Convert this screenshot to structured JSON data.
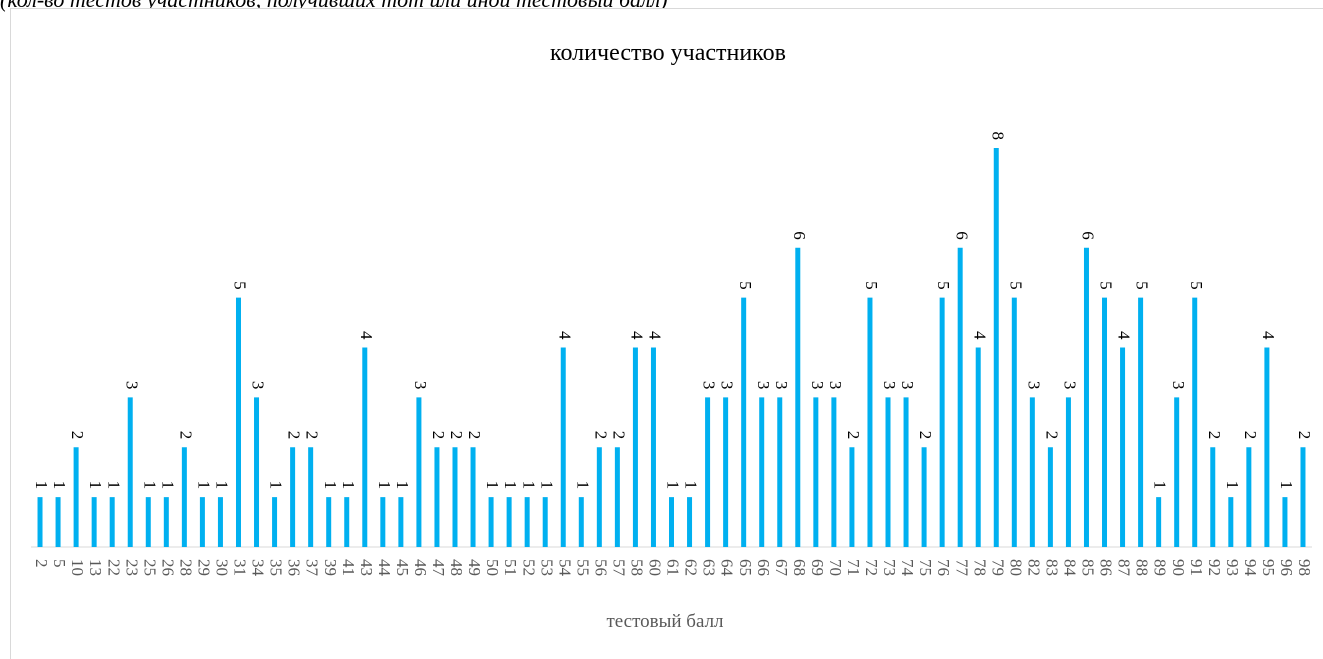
{
  "note": "(кол-во тестов участников, получивших тот или иной тестовый балл)",
  "chart_data": {
    "type": "bar",
    "title": "количество участников",
    "x_label": "тестовый балл",
    "categories": [
      "2",
      "5",
      "10",
      "13",
      "22",
      "23",
      "25",
      "26",
      "28",
      "29",
      "30",
      "31",
      "34",
      "35",
      "36",
      "37",
      "39",
      "41",
      "43",
      "44",
      "45",
      "46",
      "47",
      "48",
      "49",
      "50",
      "51",
      "52",
      "53",
      "54",
      "55",
      "56",
      "57",
      "58",
      "60",
      "61",
      "62",
      "63",
      "64",
      "65",
      "66",
      "67",
      "68",
      "69",
      "70",
      "71",
      "72",
      "73",
      "74",
      "75",
      "76",
      "77",
      "78",
      "79",
      "80",
      "82",
      "83",
      "84",
      "85",
      "86",
      "87",
      "88",
      "89",
      "90",
      "91",
      "92",
      "93",
      "94",
      "95",
      "96",
      "98"
    ],
    "values": [
      1,
      1,
      2,
      1,
      1,
      3,
      1,
      1,
      2,
      1,
      1,
      5,
      3,
      1,
      2,
      2,
      1,
      1,
      4,
      1,
      1,
      3,
      2,
      2,
      2,
      1,
      1,
      1,
      1,
      4,
      1,
      2,
      2,
      4,
      4,
      1,
      1,
      3,
      3,
      5,
      3,
      3,
      6,
      3,
      3,
      2,
      5,
      3,
      3,
      2,
      5,
      6,
      4,
      8,
      5,
      3,
      2,
      3,
      6,
      5,
      4,
      5,
      1,
      3,
      5,
      2,
      1,
      2,
      4,
      1,
      2
    ],
    "color": "#00b0f0",
    "ylim": [
      0,
      8
    ],
    "data_labels": true
  }
}
